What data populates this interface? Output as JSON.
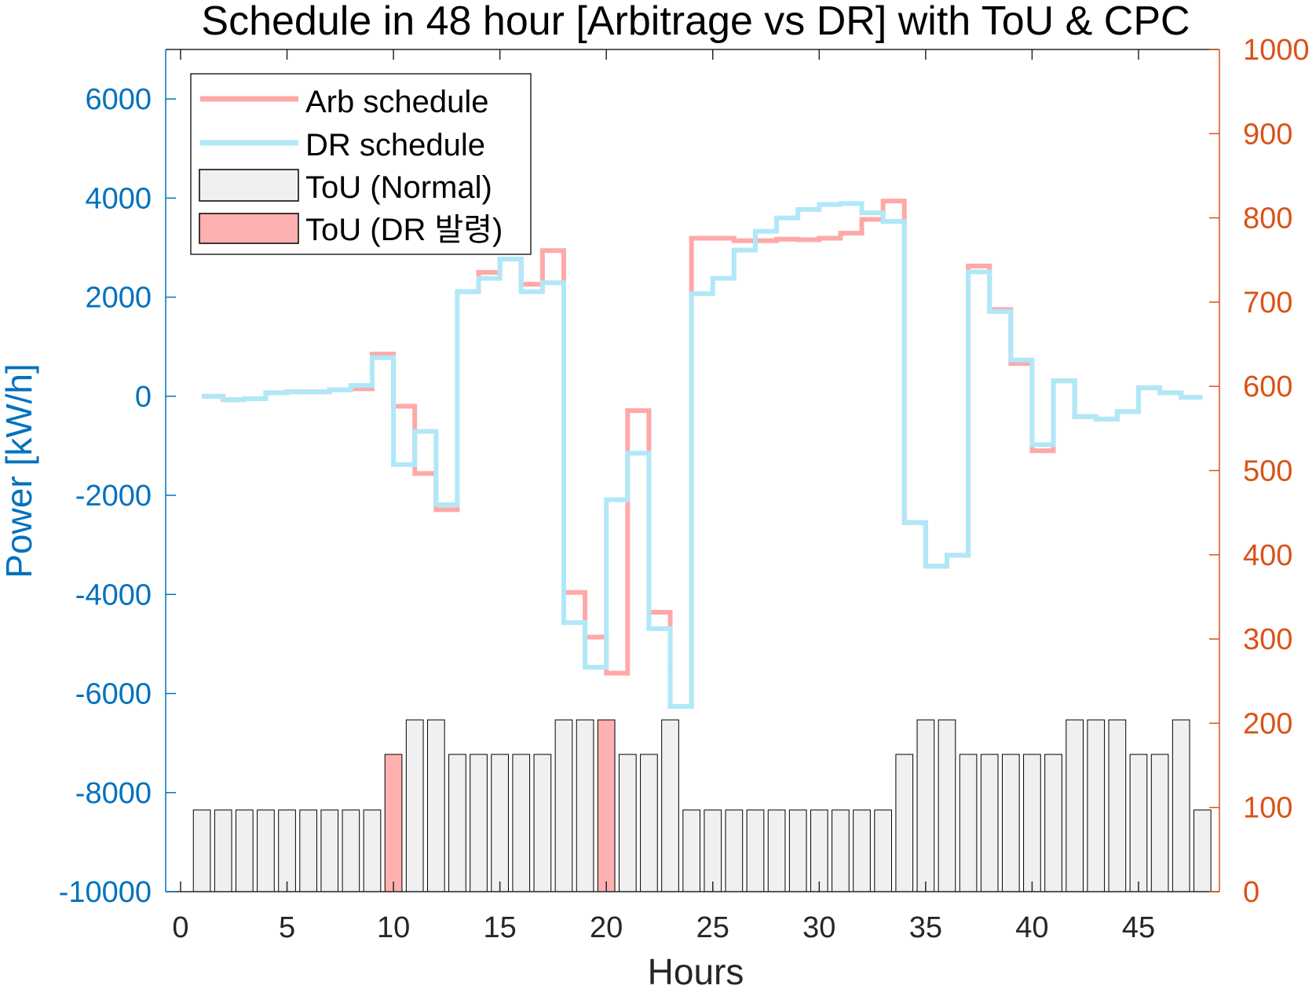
{
  "chart_data": {
    "type": "line",
    "title": "Schedule in 48 hour [Arbitrage vs DR] with ToU & CPC",
    "xlabel": "Hours",
    "ylabel_left": "Power [kW/h]",
    "ylabel_right": "",
    "xlim": [
      -0.7,
      48.8
    ],
    "ylim_left": [
      -10000,
      7000
    ],
    "ylim_right": [
      0,
      1000
    ],
    "x_ticks": [
      0,
      5,
      10,
      15,
      20,
      25,
      30,
      35,
      40,
      45
    ],
    "y_ticks_left": [
      -10000,
      -8000,
      -6000,
      -4000,
      -2000,
      0,
      2000,
      4000,
      6000
    ],
    "y_ticks_right": [
      0,
      100,
      200,
      300,
      400,
      500,
      600,
      700,
      800,
      900,
      1000
    ],
    "legend_placement": "top-left",
    "legend": [
      "Arb schedule",
      "DR schedule",
      "ToU (Normal)",
      "ToU (DR 발령)"
    ],
    "x": [
      1,
      2,
      3,
      4,
      5,
      6,
      7,
      8,
      9,
      10,
      11,
      12,
      13,
      14,
      15,
      16,
      17,
      18,
      19,
      20,
      21,
      22,
      23,
      24,
      25,
      26,
      27,
      28,
      29,
      30,
      31,
      32,
      33,
      34,
      35,
      36,
      37,
      38,
      39,
      40,
      41,
      42,
      43,
      44,
      45,
      46,
      47,
      48
    ],
    "series": [
      {
        "name": "Arb schedule",
        "type": "stairs",
        "axis": "left",
        "color": "#FFA8A8",
        "values": [
          0,
          -70,
          -50,
          70,
          90,
          90,
          130,
          150,
          850,
          -200,
          -1560,
          -2290,
          2110,
          2500,
          2770,
          2260,
          2940,
          -3960,
          -4860,
          -5590,
          -290,
          -4360,
          -6260,
          3190,
          3190,
          3140,
          3140,
          3170,
          3160,
          3190,
          3290,
          3570,
          3940,
          -2550,
          -3430,
          -3210,
          2630,
          1750,
          660,
          -1100,
          310,
          -410,
          -460,
          -310,
          170,
          70,
          -20,
          -20
        ]
      },
      {
        "name": "DR schedule",
        "type": "stairs",
        "axis": "left",
        "color": "#B0E8F8",
        "values": [
          0,
          -70,
          -50,
          70,
          90,
          90,
          130,
          220,
          780,
          -1380,
          -710,
          -2190,
          2110,
          2380,
          2770,
          2110,
          2290,
          -4570,
          -5470,
          -2090,
          -1150,
          -4690,
          -6260,
          2070,
          2380,
          2950,
          3330,
          3600,
          3770,
          3870,
          3890,
          3700,
          3530,
          -2550,
          -3430,
          -3210,
          2510,
          1710,
          730,
          -980,
          310,
          -410,
          -460,
          -310,
          170,
          70,
          -20,
          -20
        ]
      },
      {
        "name": "ToU",
        "type": "bar",
        "axis": "right",
        "values": [
          97,
          97,
          97,
          97,
          97,
          97,
          97,
          97,
          97,
          163,
          204,
          204,
          163,
          163,
          163,
          163,
          163,
          204,
          204,
          204,
          163,
          163,
          204,
          97,
          97,
          97,
          97,
          97,
          97,
          97,
          97,
          97,
          97,
          163,
          204,
          204,
          163,
          163,
          163,
          163,
          163,
          204,
          204,
          204,
          163,
          163,
          204,
          97
        ],
        "dr_hours": [
          10,
          20
        ]
      }
    ]
  },
  "colors": {
    "left_axis": "#0072BD",
    "right_axis": "#D95319",
    "bar_normal": "#F0F0F0",
    "bar_dr": "#FFB0B0"
  }
}
